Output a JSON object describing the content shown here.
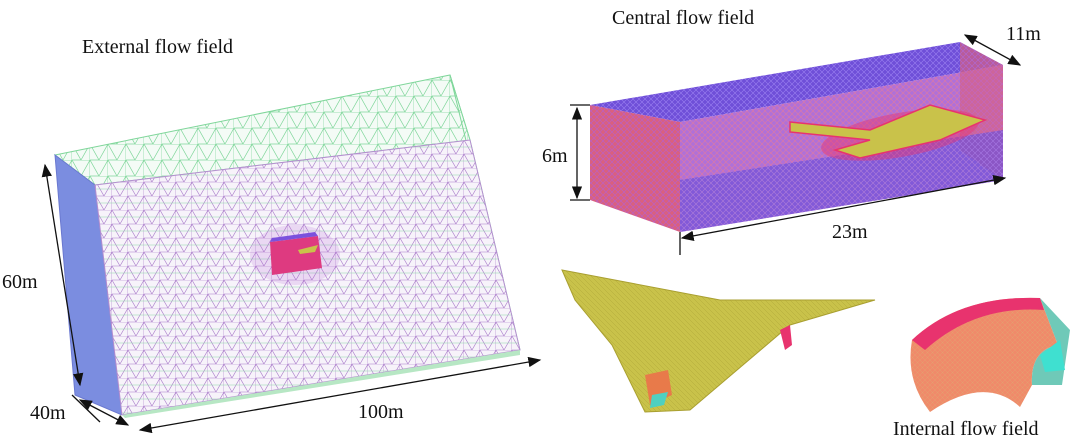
{
  "panels": [
    {
      "title": "External flow field",
      "dimensions": [
        "60m",
        "40m",
        "100m"
      ]
    },
    {
      "title": "Central flow field",
      "dimensions": [
        "11m",
        "6m",
        "23m"
      ]
    },
    {
      "title": "Internal flow field"
    }
  ]
}
